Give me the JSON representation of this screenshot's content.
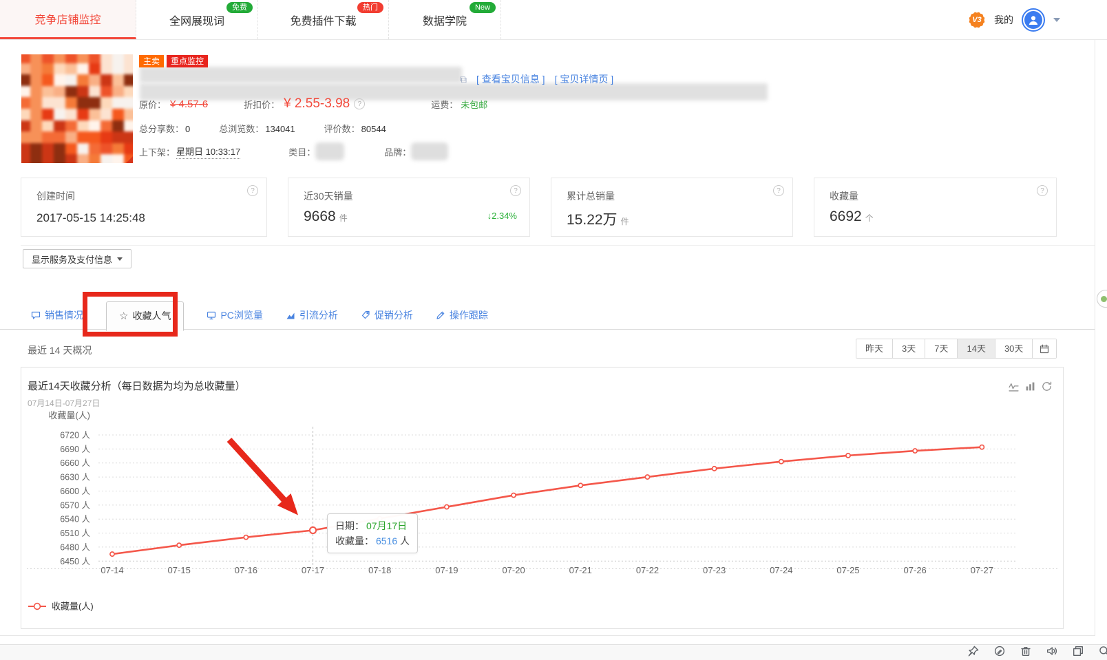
{
  "nav": {
    "tabs": [
      {
        "label": "竞争店铺监控",
        "active": true
      },
      {
        "label": "全网展现词",
        "badge": "免费",
        "badge_type": "green"
      },
      {
        "label": "免费插件下载",
        "badge": "热门",
        "badge_type": "red"
      },
      {
        "label": "数据学院",
        "badge": "New",
        "badge_type": "green"
      }
    ],
    "user": {
      "level": "V3",
      "my_label": "我的"
    }
  },
  "product": {
    "tags": [
      {
        "label": "主卖",
        "type": "orange"
      },
      {
        "label": "重点监控",
        "type": "red"
      }
    ],
    "link_icon": "⧉",
    "links": [
      {
        "label": "[ 查看宝贝信息 ]"
      },
      {
        "label": "[ 宝贝详情页 ]"
      }
    ],
    "price": {
      "orig_label": "原价：",
      "orig_value": "¥ 4.57-6",
      "discount_label": "折扣价：",
      "discount_value": "¥ 2.55-3.98",
      "shipping_label": "运费：",
      "shipping_value": "未包邮"
    },
    "stats": [
      {
        "label": "总分享数：",
        "value": "0"
      },
      {
        "label": "总浏览数：",
        "value": "134041"
      },
      {
        "label": "评价数：",
        "value": "80544"
      }
    ],
    "meta": {
      "shelf_label": "上下架：",
      "shelf_value": "星期日 10:33:17",
      "category_label": "类目：",
      "brand_label": "品牌："
    },
    "image_palette": [
      "#e8542c",
      "#f07b3c",
      "#ef5a22",
      "#f9c09a",
      "#fbe3d2",
      "#e03c17",
      "#f7f2ee",
      "#f3925c",
      "#c63718",
      "#fcd9bd",
      "#ef6c3a",
      "#fff4ec",
      "#8a2f12",
      "#f6b088"
    ]
  },
  "cards": [
    {
      "title": "创建时间",
      "value": "2017-05-15 14:25:48",
      "unit": "",
      "delta": ""
    },
    {
      "title": "近30天销量",
      "value": "9668",
      "unit": "件",
      "delta": "2.34%",
      "delta_arrow": "↓"
    },
    {
      "title": "累计总销量",
      "value": "15.22万",
      "unit": "件",
      "delta": ""
    },
    {
      "title": "收藏量",
      "value": "6692",
      "unit": "个",
      "delta": ""
    }
  ],
  "services_button": "显示服务及支付信息",
  "detail_tabs": [
    {
      "label": "销售情况",
      "icon": "chat-icon"
    },
    {
      "label": "收藏人气",
      "icon": "star-icon",
      "active": true
    },
    {
      "label": "PC浏览量",
      "icon": "monitor-icon"
    },
    {
      "label": "引流分析",
      "icon": "trend-icon"
    },
    {
      "label": "促销分析",
      "icon": "tag-icon"
    },
    {
      "label": "操作跟踪",
      "icon": "pen-icon"
    }
  ],
  "overview_label": "最近 14 天概况",
  "periods": {
    "options": [
      "昨天",
      "3天",
      "7天",
      "14天",
      "30天"
    ],
    "active": "14天"
  },
  "chart_data": {
    "type": "line",
    "title": "最近14天收藏分析（每日数据为均为总收藏量）",
    "subtitle": "07月14日-07月27日",
    "ylabel": "收藏量(人)",
    "ylim": [
      6450,
      6720
    ],
    "y_step": 30,
    "y_tick_suffix": " 人",
    "grid": true,
    "legend_position": "bottom-left",
    "categories": [
      "07-14",
      "07-15",
      "07-16",
      "07-17",
      "07-18",
      "07-19",
      "07-20",
      "07-21",
      "07-22",
      "07-23",
      "07-24",
      "07-25",
      "07-26",
      "07-27"
    ],
    "series": [
      {
        "name": "收藏量(人)",
        "color": "#f4574a",
        "values": [
          6465,
          6484,
          6501,
          6516,
          6541,
          6566,
          6591,
          6612,
          6630,
          6648,
          6663,
          6676,
          6686,
          6694
        ]
      }
    ],
    "legend": [
      "收藏量(人)"
    ],
    "tooltip": {
      "index": 3,
      "date_label": "日期：",
      "date_value": "07月17日",
      "value_label": "收藏量：",
      "value": "6516",
      "value_unit": "人"
    }
  },
  "colors": {
    "accent_red": "#f2493b",
    "annotation_red": "#e7281b",
    "link_blue": "#4a84e0",
    "green": "#2bb039",
    "line_red": "#f4574a",
    "tooltip_date_green": "#27a327",
    "tooltip_value_blue": "#4a90e2"
  },
  "taskbar_icons": [
    "pin-icon",
    "edit-circle-icon",
    "trash-icon",
    "speaker-icon",
    "window-icon",
    "search-icon"
  ]
}
